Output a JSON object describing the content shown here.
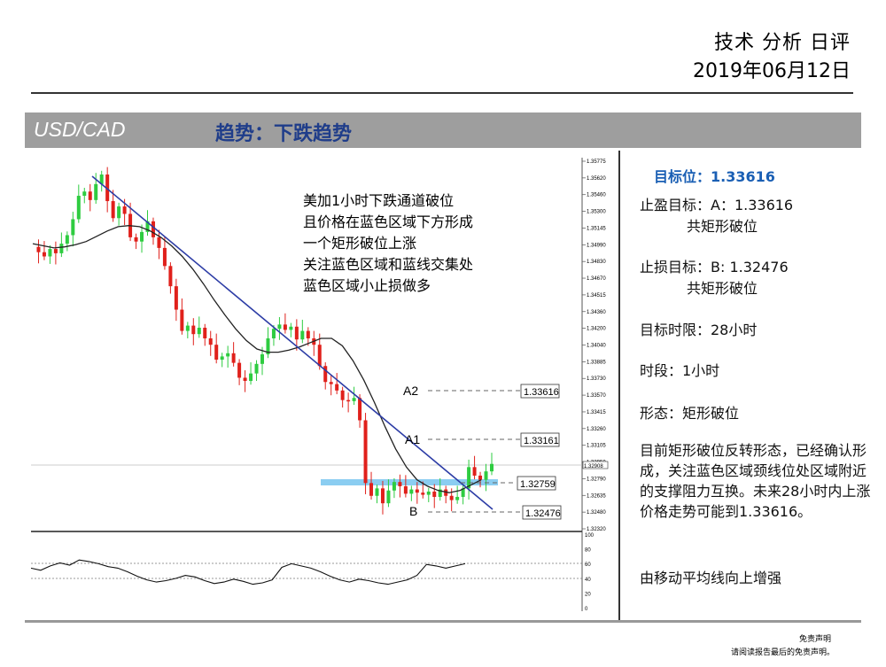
{
  "header": {
    "title": "技术 分析 日评",
    "date": "2019年06月12日"
  },
  "banner": {
    "pair": "USD/CAD",
    "trend": "趋势：下跌趋势"
  },
  "annotation": {
    "lines": [
      "美加1小时下跌通道破位",
      "且价格在蓝色区域下方形成",
      "一个矩形破位上涨",
      "关注蓝色区域和蓝线交集处",
      "蓝色区域小止损做多"
    ]
  },
  "levels": {
    "a2": {
      "label": "A2",
      "value": "1.33616"
    },
    "a1": {
      "label": "A1",
      "value": "1.33161"
    },
    "mid": {
      "label": "",
      "value": "1.32759"
    },
    "b": {
      "label": "B",
      "value": "1.32476"
    }
  },
  "price_axis": {
    "ticks": [
      "1.35775",
      "1.35620",
      "1.35460",
      "1.35300",
      "1.35145",
      "1.34990",
      "1.34830",
      "1.34670",
      "1.34515",
      "1.34360",
      "1.34200",
      "1.34040",
      "1.33885",
      "1.33730",
      "1.33570",
      "1.33415",
      "1.33260",
      "1.33105",
      "1.32950",
      "1.32790",
      "1.32635",
      "1.32480",
      "1.32320"
    ],
    "current": "1.32908"
  },
  "osc_axis": {
    "ticks": [
      "100",
      "80",
      "60",
      "40",
      "20",
      "0"
    ]
  },
  "right_panel": {
    "target": "目标位：1.33616",
    "tp_line1": "止盈目标：A：1.33616",
    "tp_line2": "共矩形破位",
    "sl_line1": "止损目标：B: 1.32476",
    "sl_line2": "共矩形破位",
    "timeframe_limit": "目标时限：28小时",
    "period": "时段：1小时",
    "pattern": "形态：矩形破位",
    "analysis": "目前矩形破位反转形态，已经确认形成，关注蓝色区域颈线位处区域附近的支撑阻力互换。未来28小时内上涨价格走势可能到1.33616。",
    "ma_note": "由移动平均线向上增强"
  },
  "disclaimer": {
    "line1": "免责声明",
    "line2": "请阅读报告最后的免责声明。"
  },
  "chart_data": {
    "type": "candlestick",
    "timeframe": "1小时",
    "ylim": [
      1.3232,
      1.35775
    ],
    "close_series": [
      1.3497,
      1.3492,
      1.3488,
      1.3495,
      1.3491,
      1.35,
      1.3508,
      1.3523,
      1.3545,
      1.3549,
      1.3541,
      1.3556,
      1.3565,
      1.354,
      1.3524,
      1.3535,
      1.3528,
      1.3506,
      1.3502,
      1.3511,
      1.3521,
      1.3506,
      1.3496,
      1.3479,
      1.346,
      1.3438,
      1.3418,
      1.3423,
      1.3415,
      1.3421,
      1.3411,
      1.3405,
      1.3391,
      1.3394,
      1.3397,
      1.3388,
      1.3374,
      1.3371,
      1.3378,
      1.3387,
      1.3396,
      1.3411,
      1.342,
      1.3424,
      1.3419,
      1.3422,
      1.341,
      1.3418,
      1.3411,
      1.3405,
      1.3385,
      1.337,
      1.3368,
      1.3362,
      1.3353,
      1.3352,
      1.3355,
      1.3334,
      1.3275,
      1.3263,
      1.327,
      1.3256,
      1.3268,
      1.3276,
      1.3272,
      1.3265,
      1.3269,
      1.3266,
      1.3264,
      1.3267,
      1.3262,
      1.3269,
      1.3263,
      1.3259,
      1.3262,
      1.327,
      1.329,
      1.3282,
      1.3278,
      1.3286,
      1.3293
    ],
    "ma_series": [
      1.35,
      1.3498,
      1.3496,
      1.3497,
      1.3499,
      1.3502,
      1.3507,
      1.3512,
      1.3516,
      1.3517,
      1.3516,
      1.3512,
      1.3506,
      1.3498,
      1.3488,
      1.3476,
      1.3462,
      1.3447,
      1.3433,
      1.342,
      1.3409,
      1.3401,
      1.3398,
      1.3398,
      1.34,
      1.3403,
      1.3407,
      1.3411,
      1.3411,
      1.3404,
      1.339,
      1.3372,
      1.3351,
      1.3328,
      1.3307,
      1.329,
      1.3278,
      1.3272,
      1.3268,
      1.3266,
      1.3268,
      1.3273,
      1.3278
    ],
    "trendline": [
      [
        0,
        1.3563
      ],
      [
        1,
        1.3251
      ]
    ],
    "oscillator": [
      55,
      52,
      58,
      62,
      59,
      66,
      64,
      61,
      57,
      55,
      50,
      44,
      39,
      36,
      38,
      41,
      45,
      43,
      38,
      34,
      36,
      40,
      37,
      33,
      35,
      39,
      56,
      61,
      58,
      55,
      50,
      44,
      39,
      36,
      40,
      38,
      35,
      33,
      36,
      39,
      45,
      60,
      58,
      55,
      58,
      61
    ]
  }
}
